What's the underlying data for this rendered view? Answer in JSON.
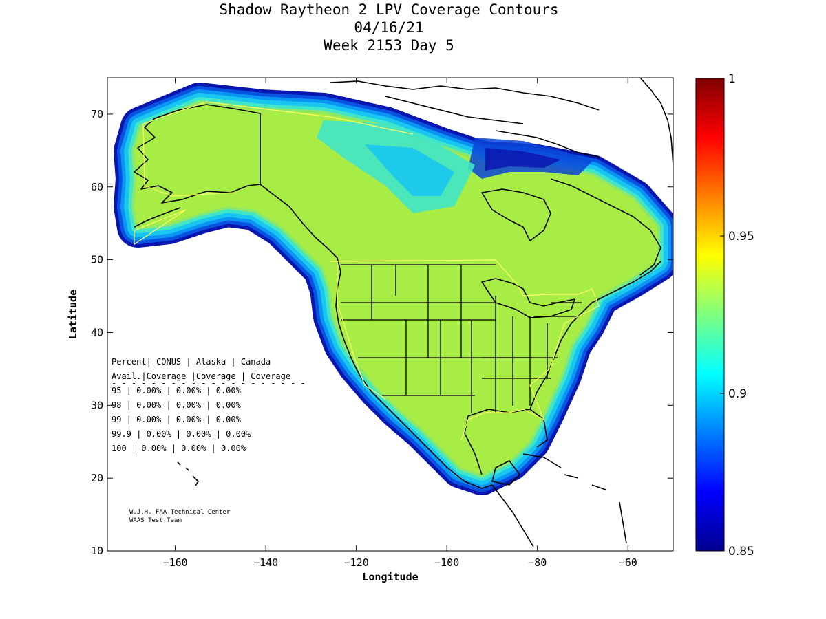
{
  "title": {
    "line1": "Shadow Raytheon 2 LPV Coverage Contours",
    "line2": "04/16/21",
    "line3": "Week 2153 Day 5"
  },
  "axes": {
    "xlabel": "Longitude",
    "ylabel": "Latitude",
    "xlim": [
      -175,
      -50
    ],
    "ylim": [
      10,
      75
    ],
    "xticks": [
      -160,
      -140,
      -120,
      -100,
      -80,
      -60
    ],
    "yticks": [
      10,
      20,
      30,
      40,
      50,
      60,
      70
    ]
  },
  "colorbar": {
    "range": [
      0.85,
      1
    ],
    "labels": [
      "1",
      "0.95",
      "0.9",
      "0.85"
    ],
    "label_values": [
      1,
      0.95,
      0.9,
      0.85
    ]
  },
  "stats_table": {
    "header1": "Percent| CONUS   | Alaska  | Canada",
    "header2": " Avail.|Coverage |Coverage | Coverage",
    "separator": "- - - - - - - - - - - - - - - - - - - -",
    "rows": [
      "  95   | 0.00%  | 0.00% | 0.00%",
      "  98   | 0.00%  | 0.00% | 0.00%",
      "  99   | 0.00%  | 0.00% | 0.00%",
      "99.9   | 0.00%  | 0.00% | 0.00%",
      " 100   | 0.00%  | 0.00% | 0.00%"
    ]
  },
  "credits": {
    "line1": "W.J.H. FAA Technical Center",
    "line2": "WAAS Test Team"
  },
  "colors": {
    "coverage_core": "#a8ec46",
    "coverage_ring_1": "#8ae86c",
    "coverage_ring_2": "#41e6c8",
    "coverage_ring_3": "#19c6f0",
    "coverage_ring_4": "#0a94f4",
    "coverage_ring_5": "#0752e0",
    "coverage_ring_6": "#0a16b0",
    "coastline": "#000000",
    "boundary": "#ffff66"
  }
}
